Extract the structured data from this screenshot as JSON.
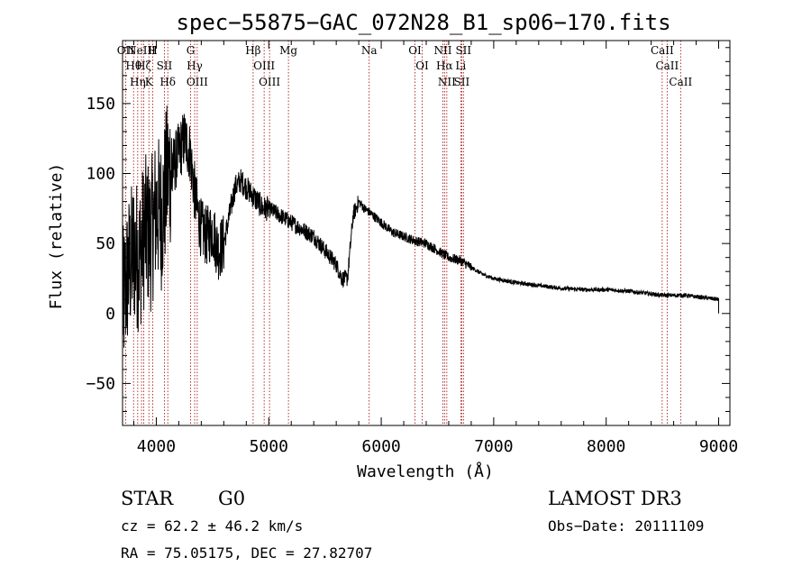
{
  "chart_data": {
    "type": "line",
    "title": "spec−55875−GAC_072N28_B1_sp06−170.fits",
    "xlabel": "Wavelength (Å)",
    "ylabel": "Flux (relative)",
    "xlim": [
      3700,
      9100
    ],
    "ylim": [
      -80,
      195
    ],
    "xticks": [
      4000,
      5000,
      6000,
      7000,
      8000,
      9000
    ],
    "yticks": [
      -50,
      0,
      50,
      100,
      150
    ],
    "ytick_labels": [
      "−50",
      "0",
      "50",
      "100",
      "150"
    ],
    "series": [
      {
        "name": "spectrum",
        "x": [
          3700,
          3750,
          3800,
          3850,
          3900,
          3950,
          4000,
          4050,
          4100,
          4150,
          4200,
          4250,
          4300,
          4350,
          4400,
          4450,
          4500,
          4550,
          4600,
          4650,
          4700,
          4750,
          4800,
          4850,
          4900,
          4950,
          5000,
          5100,
          5200,
          5300,
          5400,
          5500,
          5600,
          5650,
          5700,
          5750,
          5800,
          5850,
          5900,
          6000,
          6100,
          6200,
          6300,
          6400,
          6500,
          6600,
          6700,
          6800,
          6900,
          7000,
          7200,
          7400,
          7600,
          7800,
          8000,
          8200,
          8400,
          8500,
          8600,
          8700,
          8800,
          8900,
          9000
        ],
        "y": [
          5,
          30,
          45,
          40,
          60,
          55,
          75,
          70,
          100,
          105,
          115,
          125,
          115,
          80,
          60,
          55,
          60,
          45,
          50,
          70,
          90,
          95,
          90,
          85,
          80,
          75,
          75,
          70,
          65,
          60,
          55,
          45,
          35,
          25,
          25,
          70,
          80,
          75,
          72,
          65,
          58,
          55,
          52,
          50,
          45,
          40,
          38,
          33,
          28,
          25,
          22,
          20,
          18,
          17,
          17,
          16,
          14,
          13,
          13,
          13,
          12,
          11,
          10
        ]
      }
    ],
    "lines": [
      {
        "w": 3727,
        "label": "OII"
      },
      {
        "w": 3798,
        "label": "Hθ"
      },
      {
        "w": 3835,
        "label": "Hη"
      },
      {
        "w": 3869,
        "label": "NeIII"
      },
      {
        "w": 3889,
        "label": "Hζ"
      },
      {
        "w": 3934,
        "label": "K"
      },
      {
        "w": 3969,
        "label": "H"
      },
      {
        "w": 4072,
        "label": "SII"
      },
      {
        "w": 4102,
        "label": "Hδ"
      },
      {
        "w": 4305,
        "label": "G"
      },
      {
        "w": 4341,
        "label": "Hγ"
      },
      {
        "w": 4364,
        "label": "OIII"
      },
      {
        "w": 4861,
        "label": "Hβ"
      },
      {
        "w": 4959,
        "label": "OIII"
      },
      {
        "w": 5007,
        "label": "OIII"
      },
      {
        "w": 5175,
        "label": "Mg"
      },
      {
        "w": 5893,
        "label": "Na"
      },
      {
        "w": 6300,
        "label": "OI"
      },
      {
        "w": 6364,
        "label": "OI"
      },
      {
        "w": 6548,
        "label": "NII"
      },
      {
        "w": 6563,
        "label": "Hα"
      },
      {
        "w": 6583,
        "label": "NII"
      },
      {
        "w": 6707,
        "label": "Li"
      },
      {
        "w": 6716,
        "label": "SII"
      },
      {
        "w": 6731,
        "label": "SII"
      },
      {
        "w": 8498,
        "label": "CaII"
      },
      {
        "w": 8542,
        "label": "CaII"
      },
      {
        "w": 8662,
        "label": "CaII"
      }
    ]
  },
  "info": {
    "object_class": "STAR",
    "subclass": "G0",
    "redshift": "cz =  62.2 ±  46.2 km/s",
    "coords": "RA =  75.05175, DEC =  27.82707",
    "survey": "LAMOST DR3",
    "obs_date": "Obs−Date: 20111109"
  },
  "colors": {
    "line_marker": "#a00000",
    "axis": "#000000",
    "spectrum": "#000000"
  }
}
